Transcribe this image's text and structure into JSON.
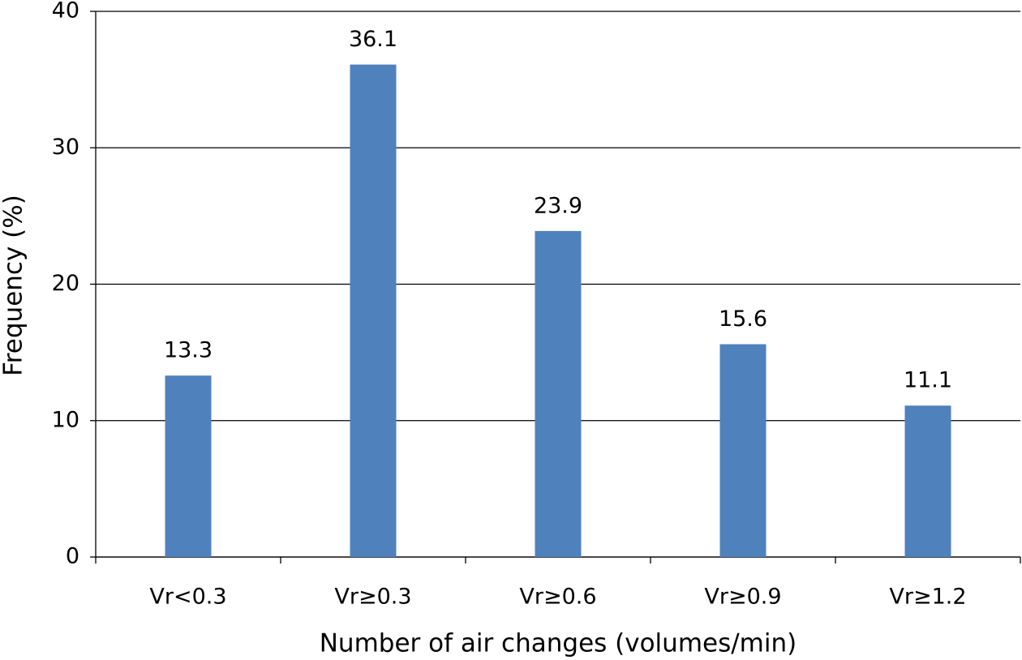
{
  "chart_data": {
    "type": "bar",
    "x_label": "Number of air changes (volumes/min)",
    "y_label": "Frequency (%)",
    "categories": [
      "Vr<0.3",
      "Vr≥0.3",
      "Vr≥0.6",
      "Vr≥0.9",
      "Vr≥1.2"
    ],
    "values": [
      13.3,
      36.1,
      23.9,
      15.6,
      11.1
    ],
    "color": "#4f81bd",
    "ylim": [
      0,
      40
    ],
    "yticks": [
      0,
      10,
      20,
      30,
      40
    ],
    "grid": true
  }
}
